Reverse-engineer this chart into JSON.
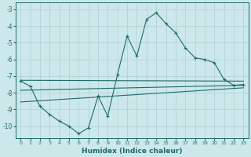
{
  "xlabel": "Humidex (Indice chaleur)",
  "xlim": [
    -0.5,
    23.5
  ],
  "ylim": [
    -10.7,
    -2.6
  ],
  "yticks": [
    -3,
    -4,
    -5,
    -6,
    -7,
    -8,
    -9,
    -10
  ],
  "xticks": [
    0,
    1,
    2,
    3,
    4,
    5,
    6,
    7,
    8,
    9,
    10,
    11,
    12,
    13,
    14,
    15,
    16,
    17,
    18,
    19,
    20,
    21,
    22,
    23
  ],
  "bg_color": "#cce8ea",
  "grid_color": "#b0cfd2",
  "line_color": "#1e6b6b",
  "jagged_x": [
    0,
    1,
    2,
    3,
    4,
    5,
    6,
    7,
    8,
    9,
    10,
    11,
    12,
    13,
    14,
    15,
    16,
    17,
    18,
    19,
    20,
    21,
    22,
    23
  ],
  "jagged_y": [
    -7.3,
    -7.6,
    -8.8,
    -9.3,
    -9.7,
    -10.0,
    -10.45,
    -10.1,
    -8.2,
    -9.4,
    -6.9,
    -4.6,
    -5.8,
    -3.6,
    -3.2,
    -3.85,
    -4.4,
    -5.3,
    -5.9,
    -6.0,
    -6.2,
    -7.2,
    -7.55,
    -7.5
  ],
  "line2_x": [
    0,
    23
  ],
  "line2_y": [
    -7.25,
    -7.3
  ],
  "line3_x": [
    0,
    23
  ],
  "line3_y": [
    -7.85,
    -7.55
  ],
  "line4_x": [
    0,
    23
  ],
  "line4_y": [
    -8.55,
    -7.7
  ]
}
